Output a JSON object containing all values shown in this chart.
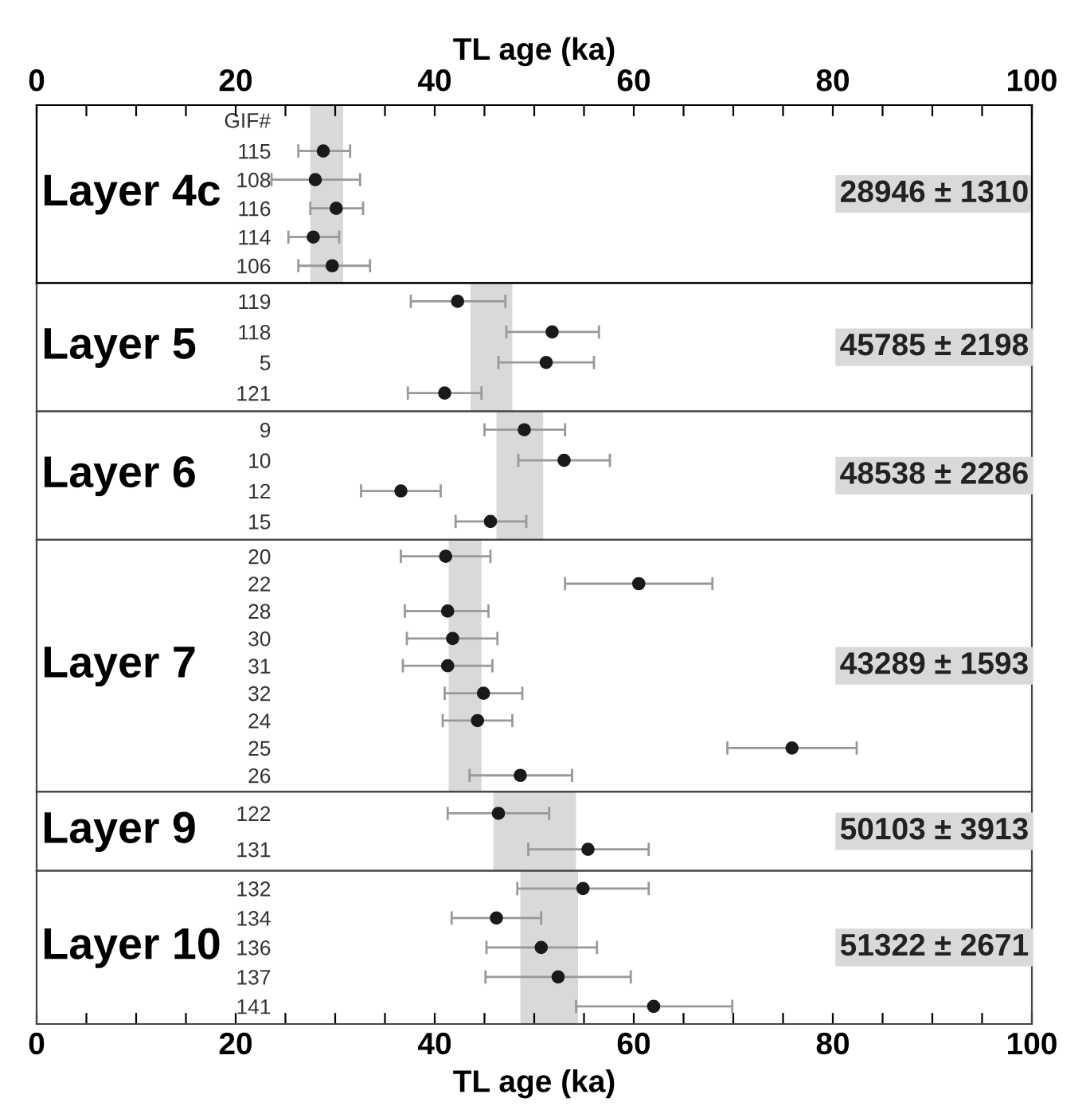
{
  "chart_data": [
    {
      "type": "scatter",
      "orientation": "horizontal",
      "ylabel": "Layer 4c",
      "x2label": "TL age (ka)",
      "categories": [
        "115",
        "108",
        "116",
        "114",
        "106"
      ],
      "marker": "circle",
      "tick_labels": "y",
      "series": [
        {
          "color": "#1a1a1a",
          "values": [
            28.8,
            28.0,
            30.1,
            27.8,
            29.7
          ],
          "errors": [
            [
              26.3,
              31.5
            ],
            [
              23.6,
              32.5
            ],
            [
              27.5,
              32.8
            ],
            [
              25.3,
              30.4
            ],
            [
              26.3,
              33.5
            ]
          ]
        }
      ],
      "bands": [
        {
          "axis": "x",
          "from": 27.5,
          "to": 30.8,
          "color": "#d9d9d9"
        }
      ],
      "annotations": [
        "28946 ± 1310",
        "GIF#"
      ],
      "xlim": [
        0,
        100
      ],
      "x2lim": [
        0,
        100
      ],
      "x2ticks": [
        0,
        {
          "value": 5,
          "label": null
        },
        {
          "value": 10,
          "label": null
        },
        {
          "value": 15,
          "label": null
        },
        20,
        {
          "value": 25,
          "label": null
        },
        {
          "value": 30,
          "label": null
        },
        {
          "value": 35,
          "label": null
        },
        40,
        {
          "value": 45,
          "label": null
        },
        {
          "value": 50,
          "label": null
        },
        {
          "value": 55,
          "label": null
        },
        60,
        {
          "value": 65,
          "label": null
        },
        {
          "value": 70,
          "label": null
        },
        {
          "value": 75,
          "label": null
        },
        80,
        {
          "value": 85,
          "label": null
        },
        {
          "value": 90,
          "label": null
        },
        {
          "value": 95,
          "label": null
        },
        100
      ]
    },
    {
      "type": "scatter",
      "orientation": "horizontal",
      "ylabel": "Layer 5",
      "categories": [
        "119",
        "118",
        "5",
        "121"
      ],
      "marker": "circle",
      "tick_labels": "y",
      "series": [
        {
          "color": "#1a1a1a",
          "values": [
            42.3,
            51.8,
            51.2,
            41.0
          ],
          "errors": [
            [
              37.6,
              47.1
            ],
            [
              47.2,
              56.5
            ],
            [
              46.4,
              56.0
            ],
            [
              37.3,
              44.7
            ]
          ]
        }
      ],
      "bands": [
        {
          "axis": "x",
          "from": 43.6,
          "to": 47.8,
          "color": "#d9d9d9"
        }
      ],
      "annotations": [
        "45785 ± 2198"
      ],
      "xlim": [
        0,
        100
      ]
    },
    {
      "type": "scatter",
      "orientation": "horizontal",
      "ylabel": "Layer 6",
      "categories": [
        "9",
        "10",
        "12",
        "15"
      ],
      "marker": "circle",
      "tick_labels": "y",
      "series": [
        {
          "color": "#1a1a1a",
          "values": [
            49.0,
            53.0,
            36.6,
            45.6
          ],
          "errors": [
            [
              45.0,
              53.1
            ],
            [
              48.4,
              57.6
            ],
            [
              32.6,
              40.6
            ],
            [
              42.1,
              49.2
            ]
          ]
        }
      ],
      "bands": [
        {
          "axis": "x",
          "from": 46.2,
          "to": 50.9,
          "color": "#d9d9d9"
        }
      ],
      "annotations": [
        "48538 ± 2286"
      ],
      "xlim": [
        0,
        100
      ]
    },
    {
      "type": "scatter",
      "orientation": "horizontal",
      "ylabel": "Layer 7",
      "categories": [
        "20",
        "22",
        "28",
        "30",
        "31",
        "32",
        "24",
        "25",
        "26"
      ],
      "marker": "circle",
      "tick_labels": "y",
      "series": [
        {
          "color": "#1a1a1a",
          "values": [
            41.1,
            60.5,
            41.3,
            41.8,
            41.3,
            44.9,
            44.3,
            75.9,
            48.6
          ],
          "errors": [
            [
              36.6,
              45.6
            ],
            [
              53.1,
              67.9
            ],
            [
              37.0,
              45.4
            ],
            [
              37.2,
              46.3
            ],
            [
              36.8,
              45.8
            ],
            [
              41.0,
              48.8
            ],
            [
              40.8,
              47.8
            ],
            [
              69.4,
              82.4
            ],
            [
              43.5,
              53.8
            ]
          ]
        }
      ],
      "bands": [
        {
          "axis": "x",
          "from": 41.4,
          "to": 44.7,
          "color": "#d9d9d9"
        }
      ],
      "annotations": [
        "43289 ± 1593"
      ],
      "xlim": [
        0,
        100
      ]
    },
    {
      "type": "scatter",
      "orientation": "horizontal",
      "ylabel": "Layer 9",
      "categories": [
        "122",
        "131"
      ],
      "marker": "circle",
      "tick_labels": "y",
      "series": [
        {
          "color": "#1a1a1a",
          "values": [
            46.4,
            55.4
          ],
          "errors": [
            [
              41.3,
              51.5
            ],
            [
              49.4,
              61.5
            ]
          ]
        }
      ],
      "bands": [
        {
          "axis": "x",
          "from": 45.9,
          "to": 54.2,
          "color": "#d9d9d9"
        }
      ],
      "annotations": [
        "50103 ± 3913"
      ],
      "xlim": [
        0,
        100
      ]
    },
    {
      "type": "scatter",
      "orientation": "horizontal",
      "ylabel": "Layer 10",
      "xlabel": "TL age (ka)",
      "categories": [
        "132",
        "134",
        "136",
        "137",
        "141"
      ],
      "marker": "circle",
      "series": [
        {
          "color": "#1a1a1a",
          "values": [
            54.9,
            46.2,
            50.7,
            52.4,
            62.0
          ],
          "errors": [
            [
              48.3,
              61.5
            ],
            [
              41.7,
              50.7
            ],
            [
              45.2,
              56.3
            ],
            [
              45.1,
              59.7
            ],
            [
              54.2,
              69.9
            ]
          ]
        }
      ],
      "bands": [
        {
          "axis": "x",
          "from": 48.6,
          "to": 54.4,
          "color": "#d9d9d9"
        }
      ],
      "annotations": [
        "51322 ± 2671"
      ],
      "xlim": [
        0,
        100
      ],
      "xticks": [
        0,
        {
          "value": 5,
          "label": null
        },
        {
          "value": 10,
          "label": null
        },
        {
          "value": 15,
          "label": null
        },
        20,
        {
          "value": 25,
          "label": null
        },
        {
          "value": 30,
          "label": null
        },
        {
          "value": 35,
          "label": null
        },
        40,
        {
          "value": 45,
          "label": null
        },
        {
          "value": 50,
          "label": null
        },
        {
          "value": 55,
          "label": null
        },
        60,
        {
          "value": 65,
          "label": null
        },
        {
          "value": 70,
          "label": null
        },
        {
          "value": 75,
          "label": null
        },
        80,
        {
          "value": 85,
          "label": null
        },
        {
          "value": 90,
          "label": null
        },
        {
          "value": 95,
          "label": null
        },
        100
      ]
    }
  ]
}
